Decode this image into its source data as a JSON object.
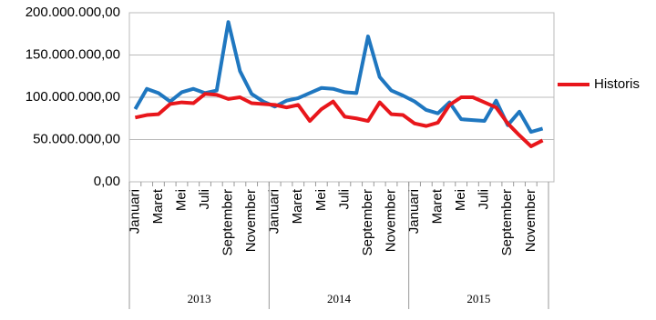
{
  "chart_data": {
    "type": "line",
    "categories": [
      "Januari",
      null,
      "Maret",
      null,
      "Mei",
      null,
      "Juli",
      null,
      "September",
      null,
      "November",
      null,
      "Januari",
      null,
      "Maret",
      null,
      "Mei",
      null,
      "Juli",
      null,
      "September",
      null,
      "November",
      null,
      "Januari",
      null,
      "Maret",
      null,
      "Mei",
      null,
      "Juli",
      null,
      "September",
      null,
      "November",
      null
    ],
    "groups": [
      "2013",
      "2014",
      "2015"
    ],
    "series": [
      {
        "color": "#1f77c0",
        "values": [
          86000000,
          110000000,
          105000000,
          95000000,
          106000000,
          110000000,
          105000000,
          108000000,
          189000000,
          131000000,
          104000000,
          95000000,
          89000000,
          96000000,
          99000000,
          105000000,
          111000000,
          110000000,
          106000000,
          105000000,
          172000000,
          124000000,
          108000000,
          102000000,
          95000000,
          85000000,
          81000000,
          94000000,
          74000000,
          73000000,
          72000000,
          96000000,
          67000000,
          83000000,
          59000000,
          63000000
        ]
      },
      {
        "name": "Historis",
        "color": "#e8161b",
        "values": [
          76000000,
          79000000,
          80000000,
          92000000,
          94000000,
          93000000,
          104000000,
          103000000,
          98000000,
          100000000,
          93000000,
          92000000,
          91000000,
          88000000,
          91000000,
          72000000,
          86000000,
          95000000,
          77000000,
          75000000,
          72000000,
          94000000,
          80000000,
          79000000,
          69000000,
          66000000,
          70000000,
          91000000,
          100000000,
          100000000,
          94000000,
          88000000,
          69000000,
          55000000,
          42000000,
          49000000
        ]
      }
    ],
    "ylim": [
      0,
      200000000
    ],
    "yticks": [
      {
        "value": 0,
        "label": "0,00"
      },
      {
        "value": 50000000,
        "label": "50.000.000,00"
      },
      {
        "value": 100000000,
        "label": "100.000.000,00"
      },
      {
        "value": 150000000,
        "label": "150.000.000,00"
      },
      {
        "value": 200000000,
        "label": "200.000.000,00"
      }
    ],
    "grid": true
  }
}
